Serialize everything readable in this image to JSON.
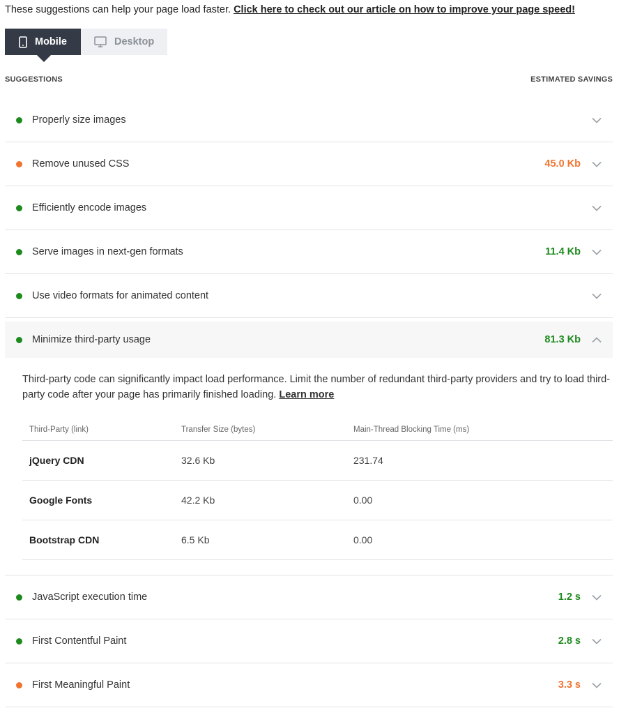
{
  "intro": {
    "text": "These suggestions can help your page load faster. ",
    "link": "Click here to check out our article on how to improve your page speed!"
  },
  "tabs": [
    {
      "label": "Mobile",
      "icon": "mobile-icon",
      "active": true
    },
    {
      "label": "Desktop",
      "icon": "desktop-icon",
      "active": false
    }
  ],
  "header": {
    "suggestions": "SUGGESTIONS",
    "savings": "ESTIMATED SAVINGS"
  },
  "colors": {
    "good": "#1e8a1e",
    "warn": "#f07430",
    "tab_active": "#343a46"
  },
  "suggestions": [
    {
      "label": "Properly size images",
      "status": "green",
      "saving": ""
    },
    {
      "label": "Remove unused CSS",
      "status": "orange",
      "saving": "45.0 Kb"
    },
    {
      "label": "Efficiently encode images",
      "status": "green",
      "saving": ""
    },
    {
      "label": "Serve images in next-gen formats",
      "status": "green",
      "saving": "11.4 Kb"
    },
    {
      "label": "Use video formats for animated content",
      "status": "green",
      "saving": ""
    },
    {
      "label": "Minimize third-party usage",
      "status": "green",
      "saving": "81.3 Kb",
      "expanded": true
    },
    {
      "label": "JavaScript execution time",
      "status": "green",
      "saving": "1.2 s"
    },
    {
      "label": "First Contentful Paint",
      "status": "green",
      "saving": "2.8 s"
    },
    {
      "label": "First Meaningful Paint",
      "status": "orange",
      "saving": "3.3 s"
    }
  ],
  "third_party": {
    "description": "Third-party code can significantly impact load performance. Limit the number of redundant third-party providers and try to load third-party code after your page has primarily finished loading. ",
    "learn_more": "Learn more",
    "columns": [
      "Third-Party (link)",
      "Transfer Size (bytes)",
      "Main-Thread Blocking Time (ms)"
    ],
    "rows": [
      {
        "name": "jQuery CDN",
        "size": "32.6 Kb",
        "time": "231.74"
      },
      {
        "name": "Google Fonts",
        "size": "42.2 Kb",
        "time": "0.00"
      },
      {
        "name": "Bootstrap CDN",
        "size": "6.5 Kb",
        "time": "0.00"
      }
    ]
  }
}
